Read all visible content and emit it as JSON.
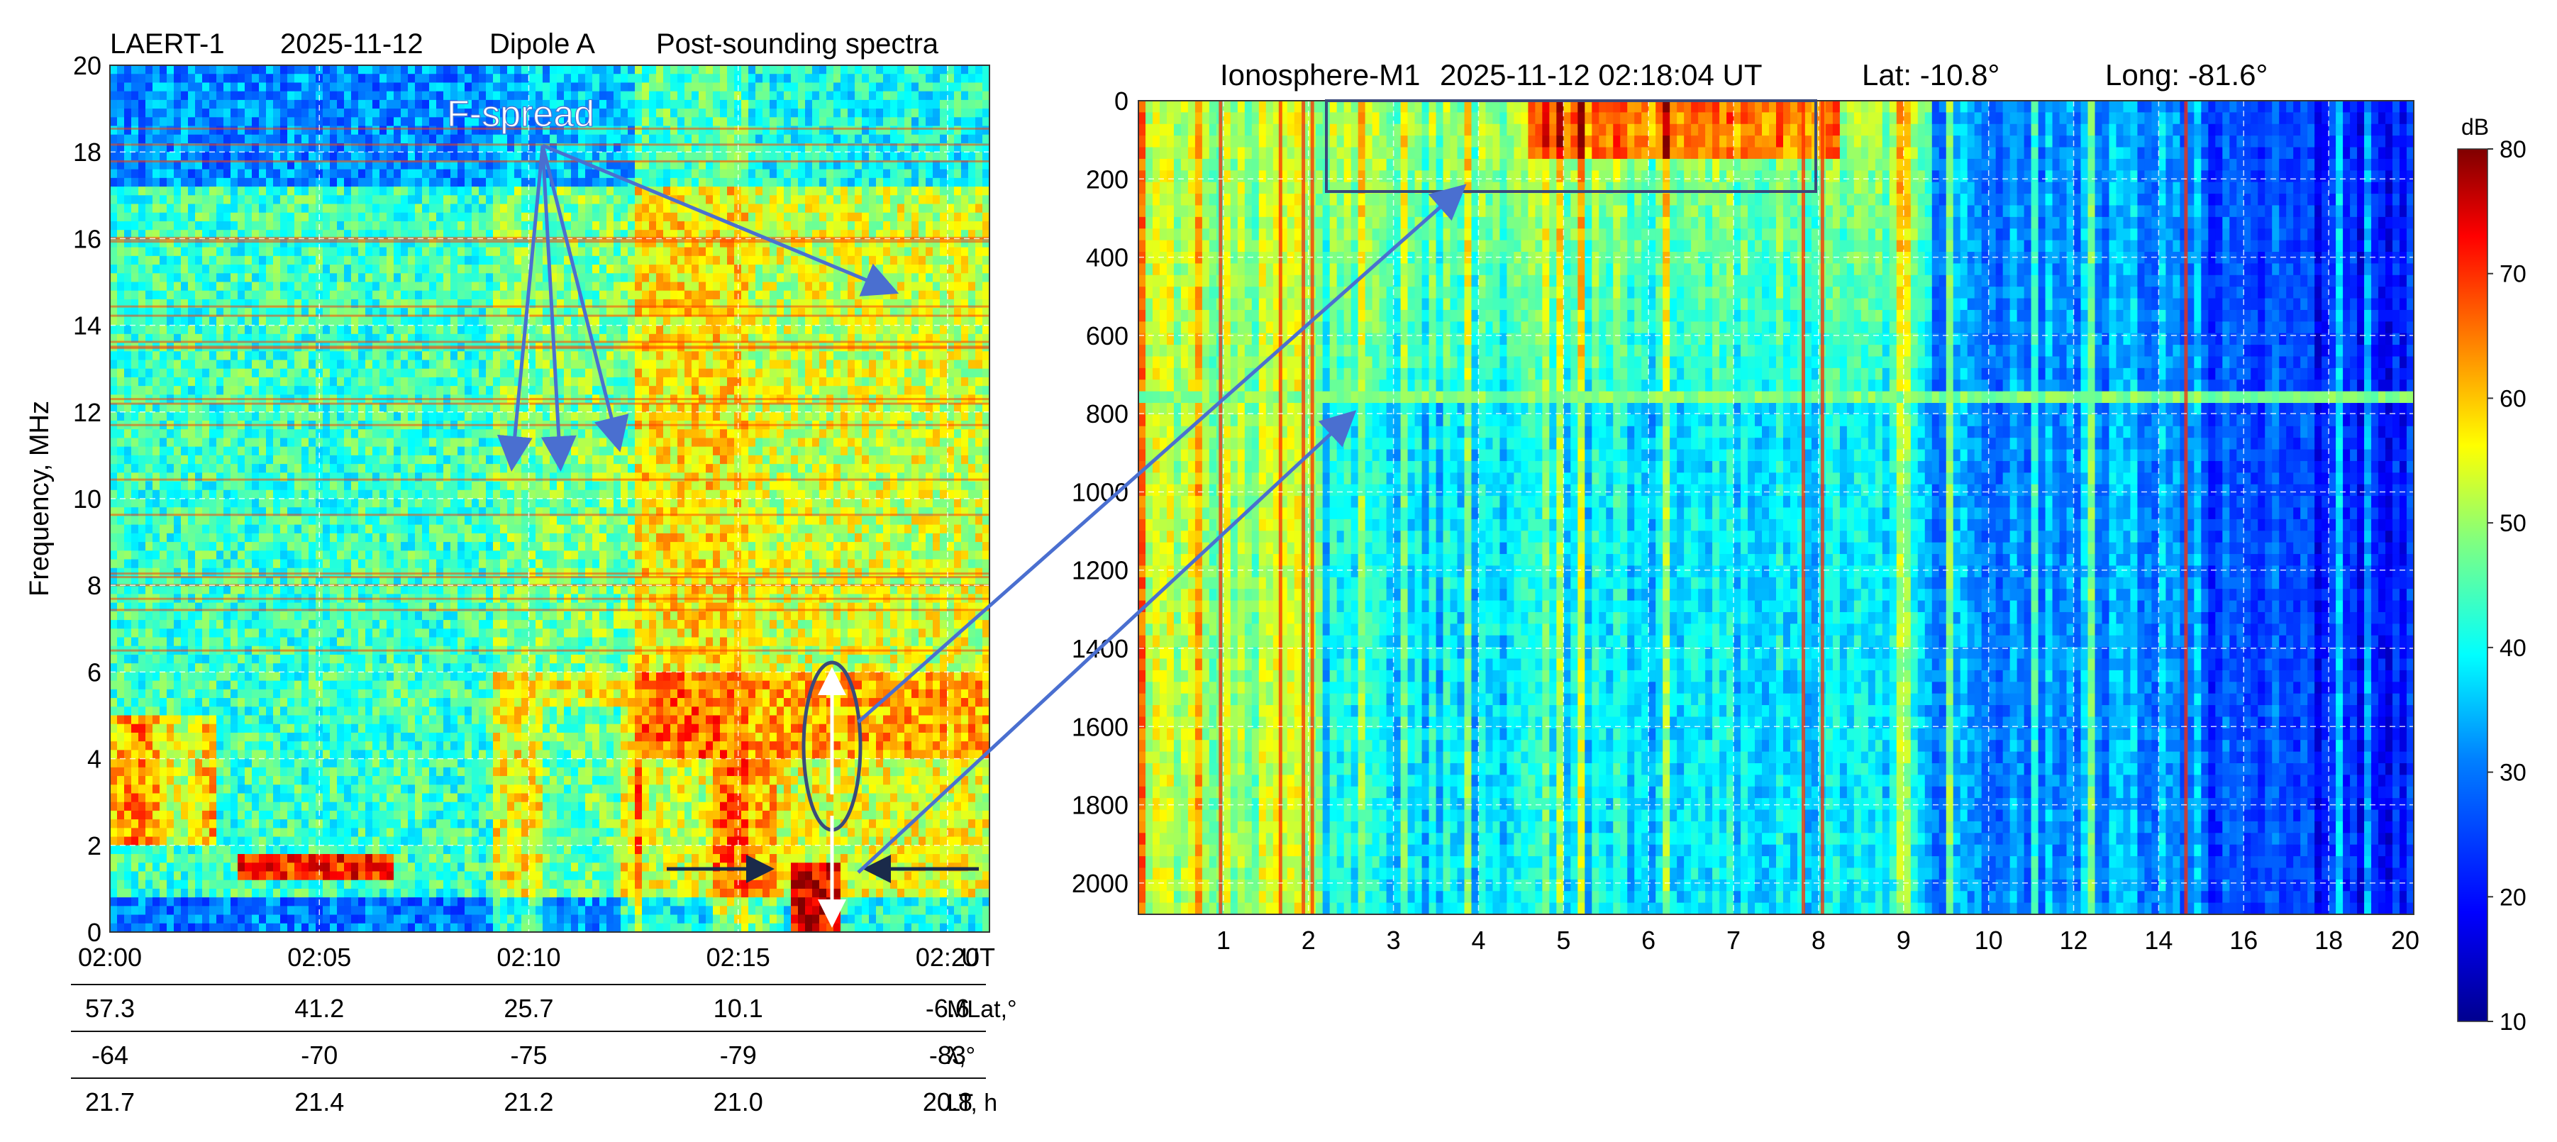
{
  "colors": {
    "jet": [
      "#00008f",
      "#0000ff",
      "#0080ff",
      "#00ffff",
      "#80ff80",
      "#ffff00",
      "#ff8000",
      "#ff0000",
      "#800000"
    ],
    "annotation_arrow": "#4a6fd0",
    "black_arrow": "#1a2a4a",
    "box_outline": "#3a4a7a",
    "white_arrow": "#ffffff",
    "grid": "#ffffff"
  },
  "chart_data": [
    {
      "type": "heatmap",
      "title": "LAERT-1     2025-11-12     Dipole A     Post-sounding spectra",
      "title_parts": [
        "LAERT-1",
        "2025-11-12",
        "Dipole A",
        "Post-sounding spectra"
      ],
      "xlabel": "",
      "ylabel": "Frequency, MHz",
      "x_unit_label": "UT",
      "xlim": [
        "02:00",
        "02:21"
      ],
      "ylim": [
        0,
        20
      ],
      "x_ticks": [
        "02:00",
        "02:05",
        "02:10",
        "02:15",
        "02:20"
      ],
      "y_ticks": [
        "0",
        "2",
        "4",
        "6",
        "8",
        "10",
        "12",
        "14",
        "16",
        "18",
        "20"
      ],
      "grid": true,
      "annotation_text": "F-spread",
      "ancillary_rows": [
        {
          "label": "MLat,°",
          "values": [
            "57.3",
            "41.2",
            "25.7",
            "10.1",
            "-6.6"
          ]
        },
        {
          "label": "λ,°",
          "values": [
            "-64",
            "-70",
            "-75",
            "-79",
            "-83"
          ]
        },
        {
          "label": "LT, h",
          "values": [
            "21.7",
            "21.4",
            "21.2",
            "21.0",
            "20.8"
          ]
        }
      ]
    },
    {
      "type": "heatmap",
      "title": "Ionosphere-M1  2025-11-12 02:18:04 UT  Lat: -10.8°  Long:  -81.6°",
      "title_parts": [
        "Ionosphere-M1",
        "2025-11-12 02:18:04 UT",
        "Lat: -10.8°",
        "Long:  -81.6°"
      ],
      "xlabel": "",
      "ylabel": "",
      "x_ticks": [
        "1",
        "2",
        "3",
        "4",
        "5",
        "6",
        "7",
        "8",
        "9",
        "10",
        "12",
        "14",
        "16",
        "18",
        "20"
      ],
      "y_ticks": [
        "0",
        "200",
        "400",
        "600",
        "800",
        "1000",
        "1200",
        "1400",
        "1600",
        "1800",
        "2000"
      ],
      "ylim": [
        0,
        2080
      ],
      "grid": true,
      "colorbar": {
        "label": "dB",
        "ticks": [
          "10",
          "20",
          "30",
          "40",
          "50",
          "60",
          "70",
          "80"
        ],
        "range": [
          10,
          80
        ]
      }
    }
  ]
}
